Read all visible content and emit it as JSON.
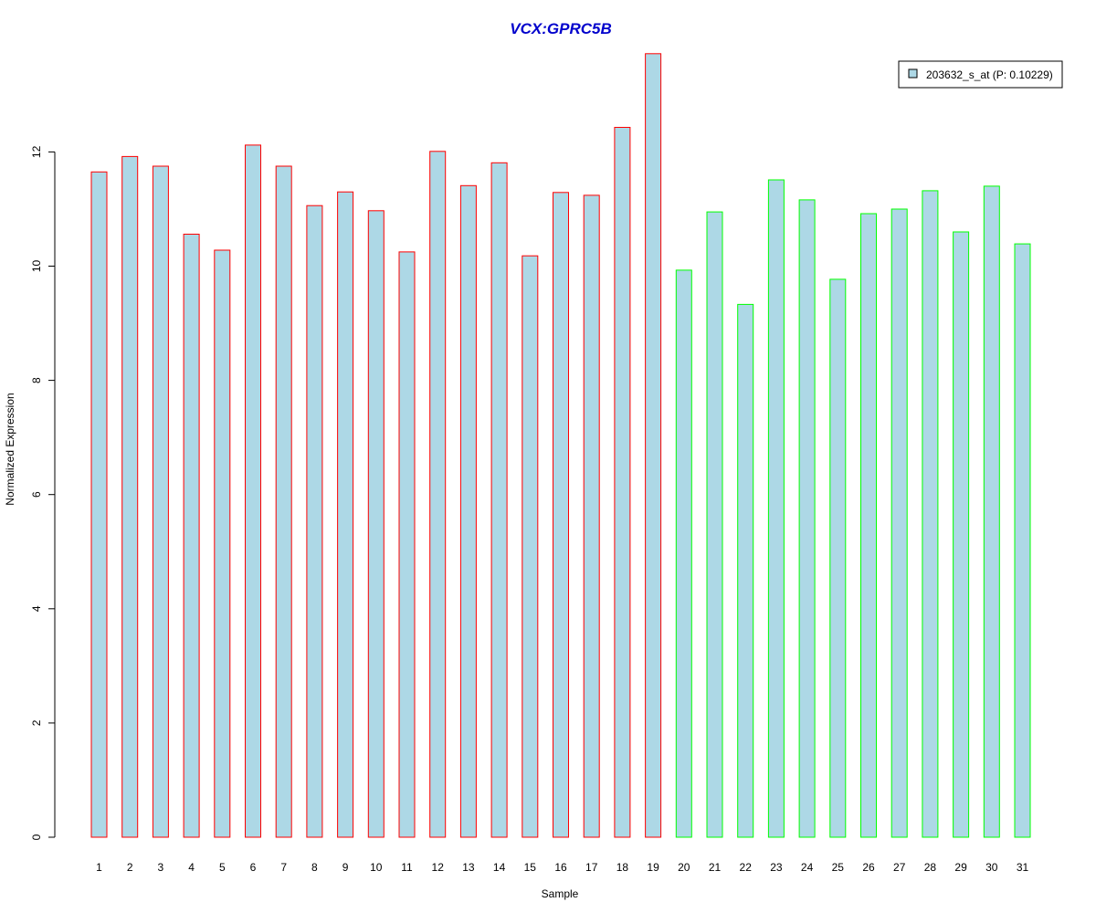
{
  "chart_data": {
    "type": "bar",
    "title": "VCX:GPRC5B",
    "xlabel": "Sample",
    "ylabel": "Normalized Expression",
    "ylim": [
      0,
      13.8
    ],
    "yticks": [
      0,
      2,
      4,
      6,
      8,
      10,
      12
    ],
    "categories": [
      "1",
      "2",
      "3",
      "4",
      "5",
      "6",
      "7",
      "8",
      "9",
      "10",
      "11",
      "12",
      "13",
      "14",
      "15",
      "16",
      "17",
      "18",
      "19",
      "20",
      "21",
      "22",
      "23",
      "24",
      "25",
      "26",
      "27",
      "28",
      "29",
      "30",
      "31"
    ],
    "series": [
      {
        "name": "203632_s_at (P: 0.10229)",
        "values": [
          11.65,
          11.92,
          11.75,
          10.56,
          10.28,
          12.12,
          11.75,
          11.06,
          11.3,
          10.97,
          10.25,
          12.01,
          11.41,
          11.81,
          10.18,
          11.29,
          11.24,
          12.43,
          13.72,
          9.93,
          10.95,
          9.33,
          11.51,
          11.16,
          9.77,
          10.92,
          11.0,
          11.32,
          10.6,
          11.4,
          10.39
        ]
      }
    ],
    "group_sizes": [
      19,
      12
    ],
    "legend_position": "top-right",
    "grid": false
  },
  "colors": {
    "title": "#0000CC",
    "bar_fill": "#ADD8E6",
    "group1_border": "#FF0000",
    "group2_border": "#00FF00",
    "axis": "#000000"
  }
}
